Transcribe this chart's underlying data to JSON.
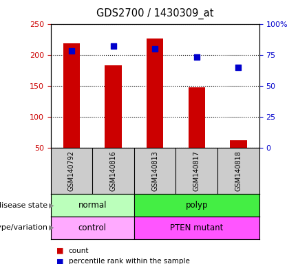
{
  "title": "GDS2700 / 1430309_at",
  "samples": [
    "GSM140792",
    "GSM140816",
    "GSM140813",
    "GSM140817",
    "GSM140818"
  ],
  "counts": [
    218,
    183,
    226,
    148,
    62
  ],
  "percentiles": [
    78,
    82,
    80,
    73,
    65
  ],
  "ylim_left": [
    50,
    250
  ],
  "ylim_right": [
    0,
    100
  ],
  "yticks_left": [
    50,
    100,
    150,
    200,
    250
  ],
  "yticks_right": [
    0,
    25,
    50,
    75,
    100
  ],
  "ytick_labels_right": [
    "0",
    "25",
    "50",
    "75",
    "100%"
  ],
  "bar_color": "#cc0000",
  "dot_color": "#0000cc",
  "bar_width": 0.4,
  "disease_state": [
    {
      "label": "normal",
      "span": [
        0,
        2
      ],
      "color": "#bbffbb"
    },
    {
      "label": "polyp",
      "span": [
        2,
        5
      ],
      "color": "#44ee44"
    }
  ],
  "genotype": [
    {
      "label": "control",
      "span": [
        0,
        2
      ],
      "color": "#ffaaff"
    },
    {
      "label": "PTEN mutant",
      "span": [
        2,
        5
      ],
      "color": "#ff55ff"
    }
  ],
  "left_label_ds": "disease state",
  "left_label_gv": "genotype/variation",
  "legend_count_label": "count",
  "legend_pct_label": "percentile rank within the sample",
  "axis_color_left": "#cc0000",
  "axis_color_right": "#0000cc",
  "sample_bg_color": "#cccccc"
}
